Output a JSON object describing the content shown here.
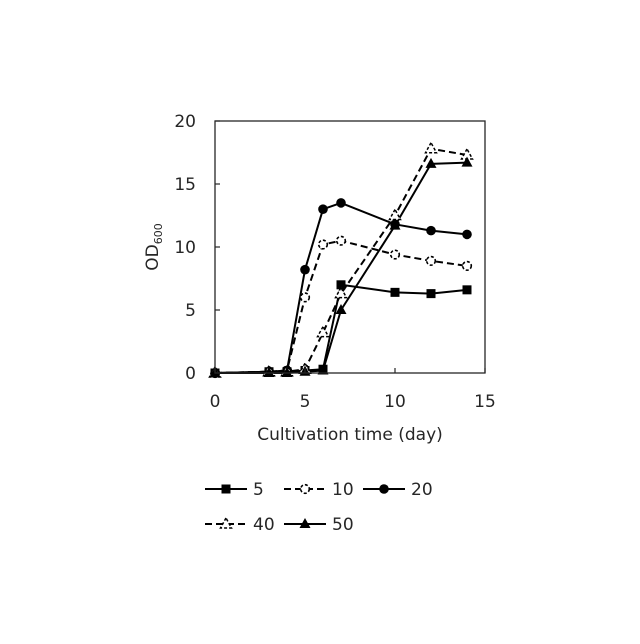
{
  "chart_data": {
    "type": "line",
    "title": "",
    "xlabel": "Cultivation time (day)",
    "ylabel": "OD",
    "ylabel_subscript": "600",
    "xlim": [
      0,
      15
    ],
    "ylim": [
      0,
      20
    ],
    "xticks": [
      "0",
      "5",
      "10",
      "15"
    ],
    "yticks": [
      "0",
      "5",
      "10",
      "15",
      "20"
    ],
    "grid": false,
    "legend_position": "bottom",
    "series": [
      {
        "name": "5",
        "line_style": "solid",
        "marker": "square-filled",
        "x": [
          0,
          3,
          4,
          5,
          6,
          7,
          10,
          12,
          14
        ],
        "y": [
          0.0,
          0.1,
          0.1,
          0.2,
          0.3,
          7.0,
          6.4,
          6.3,
          6.6
        ]
      },
      {
        "name": "10",
        "line_style": "dashed",
        "marker": "circle-open",
        "x": [
          0,
          3,
          4,
          5,
          6,
          7,
          10,
          12,
          14
        ],
        "y": [
          0.0,
          0.1,
          0.2,
          6.0,
          10.2,
          10.5,
          9.4,
          8.9,
          8.5
        ]
      },
      {
        "name": "20",
        "line_style": "solid",
        "marker": "circle-filled",
        "x": [
          0,
          3,
          4,
          5,
          6,
          7,
          10,
          12,
          14
        ],
        "y": [
          0.0,
          0.1,
          0.2,
          8.2,
          13.0,
          13.5,
          11.8,
          11.3,
          11.0
        ]
      },
      {
        "name": "40",
        "line_style": "dashed",
        "marker": "triangle-open",
        "x": [
          0,
          3,
          4,
          5,
          6,
          7,
          10,
          12,
          14
        ],
        "y": [
          0.0,
          0.1,
          0.1,
          0.3,
          3.2,
          6.3,
          12.5,
          17.8,
          17.3
        ]
      },
      {
        "name": "50",
        "line_style": "solid",
        "marker": "triangle-filled",
        "x": [
          0,
          3,
          4,
          5,
          6,
          7,
          10,
          12,
          14
        ],
        "y": [
          0.0,
          0.0,
          0.0,
          0.1,
          0.2,
          5.0,
          11.7,
          16.6,
          16.7
        ]
      }
    ]
  }
}
